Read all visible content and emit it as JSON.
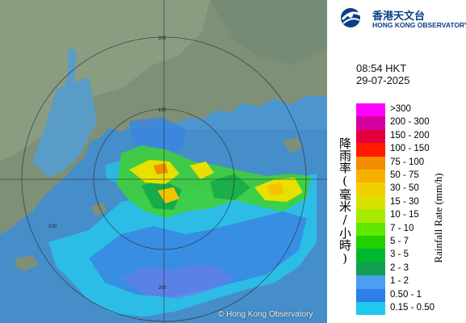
{
  "map": {
    "copyright": "© Hong Kong Observatory",
    "range_rings": [
      "100",
      "100",
      "200",
      "200"
    ]
  },
  "header": {
    "logo_cn": "香港天文台",
    "logo_en": "HONG KONG OBSERVATORY",
    "time": "08:54 HKT",
    "date": "29-07-2025"
  },
  "legend": {
    "title_cn": "降雨率(毫米/小時)",
    "title_en": "Rainfall Rate (mm/h)",
    "items": [
      {
        "label": ">300",
        "color": "#ff00ff"
      },
      {
        "label": "200 - 300",
        "color": "#d4009e"
      },
      {
        "label": "150 - 200",
        "color": "#e4003c"
      },
      {
        "label": "100 - 150",
        "color": "#ff1a00"
      },
      {
        "label": "75 - 100",
        "color": "#f28c00"
      },
      {
        "label": "50 - 75",
        "color": "#f6b000"
      },
      {
        "label": "30 - 50",
        "color": "#f2d000"
      },
      {
        "label": "15 - 30",
        "color": "#d8e000"
      },
      {
        "label": "10 - 15",
        "color": "#a8ea00"
      },
      {
        "label": "7 - 10",
        "color": "#60e800"
      },
      {
        "label": "5 - 7",
        "color": "#20d000"
      },
      {
        "label": "3 - 5",
        "color": "#00b830"
      },
      {
        "label": "2 - 3",
        "color": "#10a050"
      },
      {
        "label": "1 - 2",
        "color": "#4c9ef0"
      },
      {
        "label": "0.50 - 1",
        "color": "#2b7fe8"
      },
      {
        "label": "0.15 - 0.50",
        "color": "#1ec8f0"
      }
    ]
  }
}
